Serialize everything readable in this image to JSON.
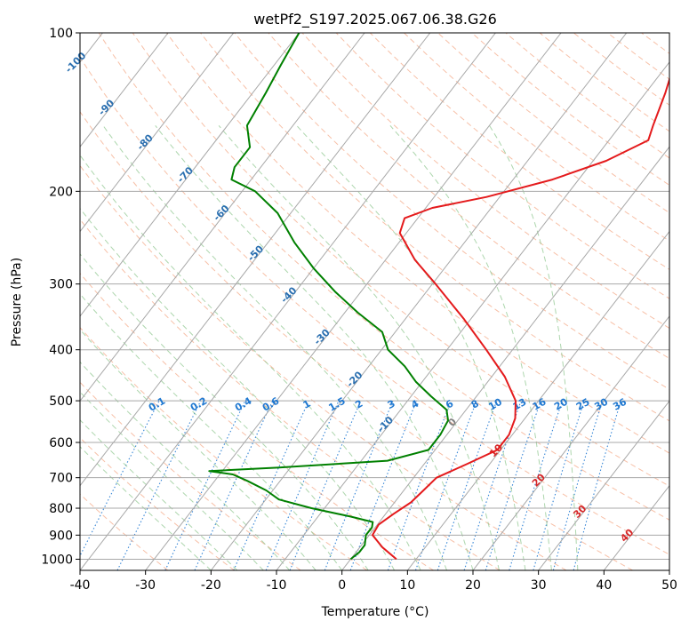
{
  "chart_data": {
    "type": "line",
    "subtype": "skew-t log-p",
    "title": "wetPf2_S197.2025.067.06.38.G26",
    "xlabel": "Temperature (°C)",
    "ylabel": "Pressure (hPa)",
    "xlim": [
      -40,
      50
    ],
    "ylim": [
      1050,
      100
    ],
    "yscale": "log",
    "grid": true,
    "x_ticks": [
      "-40",
      "-30",
      "-20",
      "-10",
      "0",
      "10",
      "20",
      "30",
      "40",
      "50"
    ],
    "y_ticks": [
      "1000",
      "900",
      "800",
      "700",
      "600",
      "500",
      "400",
      "300",
      "200",
      "100"
    ],
    "colors": {
      "temperature": "#e41a1c",
      "dewpoint": "#008000",
      "isotherm": "#a8a8a8",
      "dry_adiabat": "#f4a582",
      "moist_adiabat": "#8ac48a",
      "mixing_ratio": "#1f78d1",
      "isotherm_label": "#2a6fb0",
      "isotherm_label_warm": "#d62728"
    },
    "isotherm_labels": [
      "-100",
      "-90",
      "-80",
      "-70",
      "-60",
      "-50",
      "-40",
      "-30",
      "-20",
      "-10",
      "0",
      "10",
      "20",
      "30",
      "40"
    ],
    "mixing_ratio_labels": [
      "0.1",
      "0.2",
      "0.4",
      "0.6",
      "1",
      "1.5",
      "2",
      "3",
      "4",
      "6",
      "8",
      "10",
      "13",
      "16",
      "20",
      "25",
      "30",
      "36"
    ],
    "series": [
      {
        "name": "",
        "key": "temperature",
        "points": [
          {
            "p": 1000,
            "t": 7
          },
          {
            "p": 950,
            "t": 3.5
          },
          {
            "p": 900,
            "t": 0.5
          },
          {
            "p": 860,
            "t": 0.2
          },
          {
            "p": 820,
            "t": 1.2
          },
          {
            "p": 780,
            "t": 2.5
          },
          {
            "p": 740,
            "t": 3
          },
          {
            "p": 700,
            "t": 3.5
          },
          {
            "p": 660,
            "t": 6.5
          },
          {
            "p": 620,
            "t": 9.5
          },
          {
            "p": 580,
            "t": 9.5
          },
          {
            "p": 540,
            "t": 8.5
          },
          {
            "p": 500,
            "t": 6.5
          },
          {
            "p": 450,
            "t": 2
          },
          {
            "p": 400,
            "t": -4
          },
          {
            "p": 350,
            "t": -11
          },
          {
            "p": 300,
            "t": -19.5
          },
          {
            "p": 270,
            "t": -25.5
          },
          {
            "p": 240,
            "t": -31
          },
          {
            "p": 225,
            "t": -32
          },
          {
            "p": 215,
            "t": -29
          },
          {
            "p": 205,
            "t": -22
          },
          {
            "p": 190,
            "t": -14
          },
          {
            "p": 175,
            "t": -8
          },
          {
            "p": 160,
            "t": -4
          },
          {
            "p": 150,
            "t": -5
          },
          {
            "p": 130,
            "t": -7
          },
          {
            "p": 115,
            "t": -9
          },
          {
            "p": 105,
            "t": -10
          },
          {
            "p": 100,
            "t": -10.5
          }
        ]
      },
      {
        "name": "",
        "key": "dewpoint",
        "points": [
          {
            "p": 1000,
            "t": 0
          },
          {
            "p": 970,
            "t": 0.5
          },
          {
            "p": 940,
            "t": 0.5
          },
          {
            "p": 900,
            "t": -0.5
          },
          {
            "p": 870,
            "t": -0.5
          },
          {
            "p": 850,
            "t": -1
          },
          {
            "p": 830,
            "t": -5
          },
          {
            "p": 800,
            "t": -12
          },
          {
            "p": 770,
            "t": -18
          },
          {
            "p": 740,
            "t": -21
          },
          {
            "p": 710,
            "t": -25
          },
          {
            "p": 690,
            "t": -28
          },
          {
            "p": 680,
            "t": -32
          },
          {
            "p": 670,
            "t": -22
          },
          {
            "p": 650,
            "t": -6
          },
          {
            "p": 620,
            "t": -1
          },
          {
            "p": 580,
            "t": -1
          },
          {
            "p": 545,
            "t": -1.5
          },
          {
            "p": 520,
            "t": -3
          },
          {
            "p": 490,
            "t": -7
          },
          {
            "p": 460,
            "t": -11
          },
          {
            "p": 430,
            "t": -14.5
          },
          {
            "p": 400,
            "t": -19
          },
          {
            "p": 370,
            "t": -22
          },
          {
            "p": 340,
            "t": -28
          },
          {
            "p": 310,
            "t": -34
          },
          {
            "p": 280,
            "t": -40
          },
          {
            "p": 250,
            "t": -46
          },
          {
            "p": 220,
            "t": -52
          },
          {
            "p": 200,
            "t": -58
          },
          {
            "p": 190,
            "t": -63
          },
          {
            "p": 180,
            "t": -64
          },
          {
            "p": 165,
            "t": -64
          },
          {
            "p": 150,
            "t": -67
          },
          {
            "p": 130,
            "t": -68
          },
          {
            "p": 115,
            "t": -69
          },
          {
            "p": 100,
            "t": -70
          }
        ]
      }
    ]
  }
}
